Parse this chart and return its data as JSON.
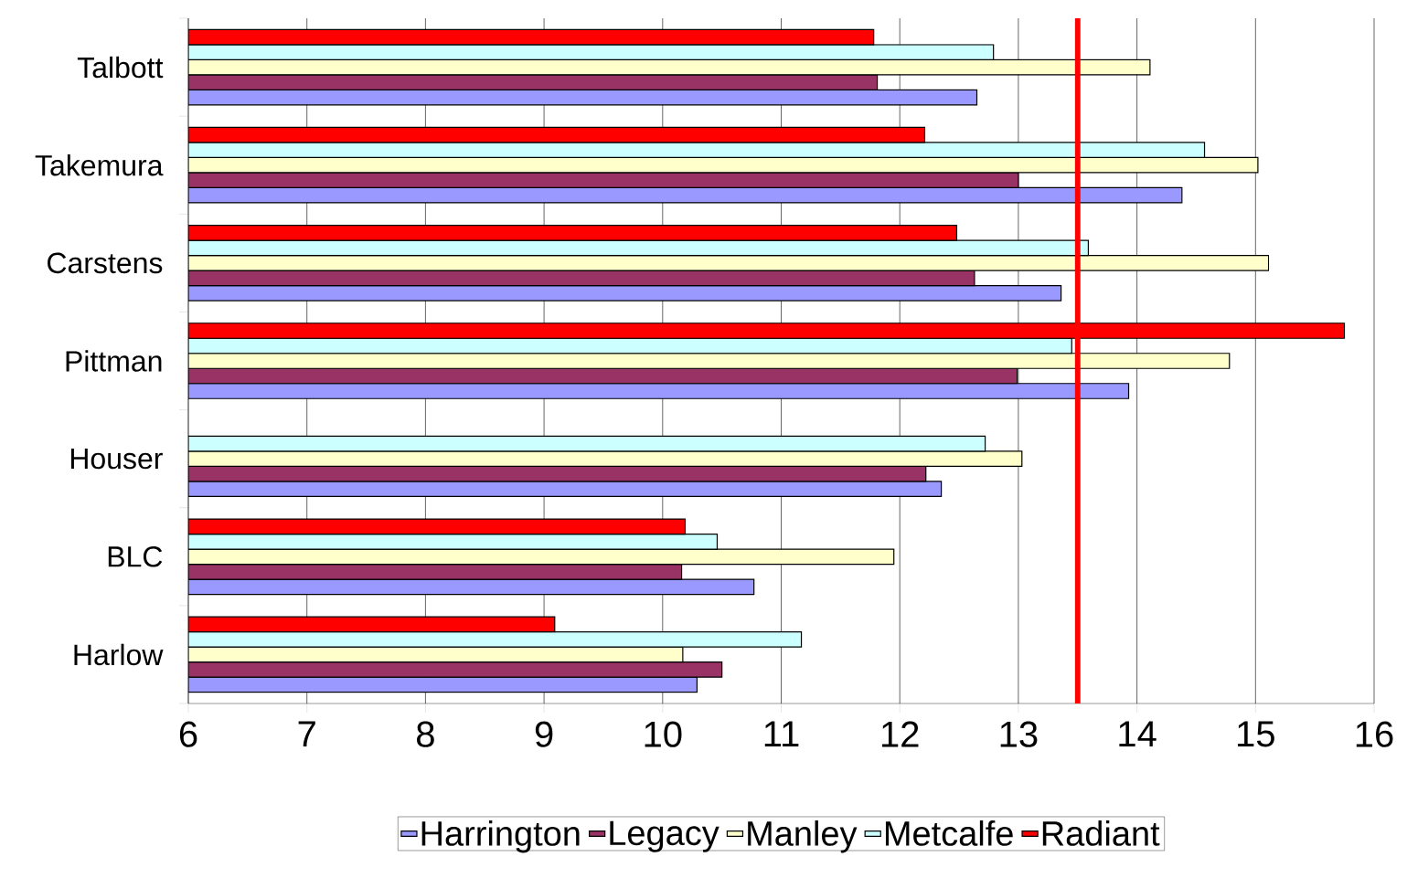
{
  "chart_data": {
    "type": "bar",
    "orientation": "horizontal",
    "categories": [
      "Talbott",
      "Takemura",
      "Carstens",
      "Pittman",
      "Houser",
      "BLC",
      "Harlow"
    ],
    "series": [
      {
        "name": "Harrington",
        "color": "#9999ff",
        "values": [
          12.65,
          14.38,
          13.36,
          13.93,
          12.35,
          10.77,
          10.29
        ]
      },
      {
        "name": "Legacy",
        "color": "#993366",
        "values": [
          11.81,
          13.0,
          12.63,
          12.99,
          12.22,
          10.16,
          10.5
        ]
      },
      {
        "name": "Manley",
        "color": "#ffffcc",
        "values": [
          14.11,
          15.02,
          15.11,
          14.78,
          13.03,
          11.95,
          10.17
        ]
      },
      {
        "name": "Metcalfe",
        "color": "#ccffff",
        "values": [
          12.79,
          14.57,
          13.59,
          13.45,
          12.72,
          10.46,
          11.17
        ]
      },
      {
        "name": "Radiant",
        "color": "#ff0000",
        "values": [
          11.78,
          12.21,
          12.48,
          15.75,
          null,
          10.19,
          9.09
        ]
      }
    ],
    "xlim": [
      6,
      16
    ],
    "xticks": [
      6,
      7,
      8,
      9,
      10,
      11,
      12,
      13,
      14,
      15,
      16
    ],
    "grid": "x",
    "legend": "bottom",
    "ref_lines": [
      {
        "axis": "x",
        "value": 13.5,
        "color": "#ff0000"
      }
    ]
  }
}
